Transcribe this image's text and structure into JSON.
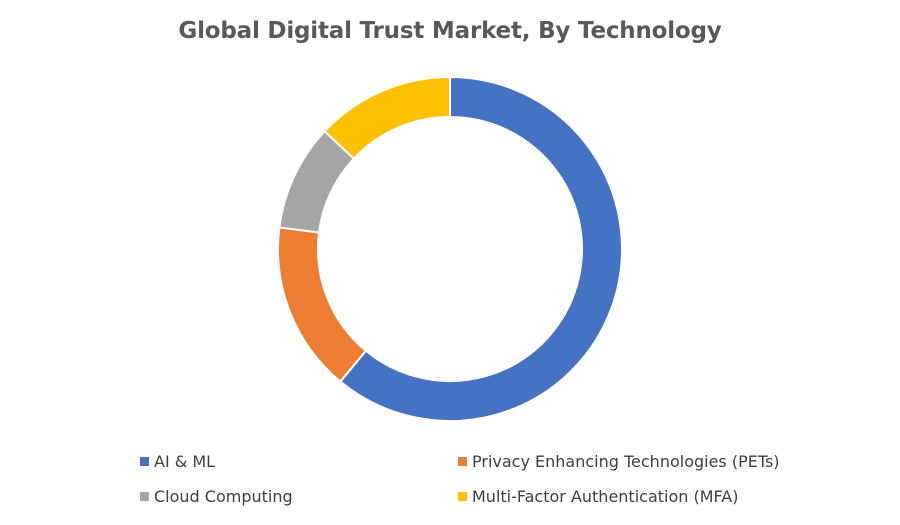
{
  "chart_data": {
    "type": "pie",
    "donut": true,
    "title": "Global Digital Trust Market, By Technology",
    "categories": [
      "AI & ML",
      "Privacy Enhancing Technologies (PETs)",
      "Cloud Computing",
      "Multi-Factor Authentication (MFA)"
    ],
    "values": [
      61,
      16,
      10,
      13
    ],
    "colors": [
      "#4472C4",
      "#ED7D31",
      "#A5A5A5",
      "#FFC000"
    ],
    "legend_position": "bottom"
  }
}
